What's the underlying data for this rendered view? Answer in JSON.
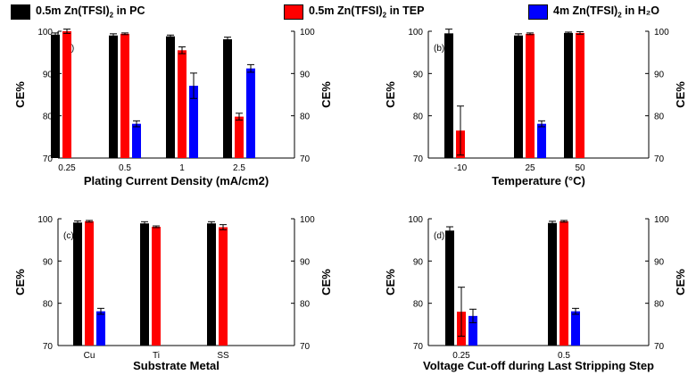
{
  "legend": [
    {
      "label_main": "0.5m Zn(TFSI)",
      "label_sub": "2",
      "label_tail": " in PC",
      "color": "#000000"
    },
    {
      "label_main": "0.5m Zn(TFSI)",
      "label_sub": "2",
      "label_tail": " in TEP",
      "color": "#ff0000"
    },
    {
      "label_main": "4m Zn(TFSI)",
      "label_sub": "2",
      "label_tail": " in H₂O",
      "color": "#0000ff"
    }
  ],
  "chart_data": [
    {
      "type": "bar",
      "panel_label": "(a)",
      "xlabel": "Plating Current Density (mA/cm2)",
      "ylabel": "CE%",
      "ylim": [
        70,
        100
      ],
      "yticks": [
        "70",
        "80",
        "90",
        "100"
      ],
      "categories": [
        "0.25",
        "0.5",
        "1",
        "2.5"
      ],
      "series": [
        {
          "name": "0.5m Zn(TFSI)2 in PC",
          "color": "#000000",
          "values": [
            99.2,
            99.0,
            98.8,
            98.1
          ],
          "errors": [
            0.4,
            0.4,
            0.3,
            0.5
          ]
        },
        {
          "name": "0.5m Zn(TFSI)2 in TEP",
          "color": "#ff0000",
          "values": [
            100.0,
            99.4,
            95.5,
            79.8
          ],
          "errors": [
            0.5,
            0.2,
            0.8,
            0.8
          ]
        },
        {
          "name": "4m Zn(TFSI)2 in H2O",
          "color": "#0000ff",
          "values": [
            null,
            78.1,
            87.1,
            91.2
          ],
          "errors": [
            null,
            0.7,
            3.0,
            0.9
          ]
        }
      ]
    },
    {
      "type": "bar",
      "panel_label": "(b)",
      "xlabel": "Temperature (°C)",
      "ylabel": "CE%",
      "ylim": [
        70,
        100
      ],
      "yticks": [
        "70",
        "80",
        "90",
        "100"
      ],
      "categories": [
        "-10",
        "25",
        "50"
      ],
      "series": [
        {
          "name": "0.5m Zn(TFSI)2 in PC",
          "color": "#000000",
          "values": [
            99.5,
            99.0,
            99.6
          ],
          "errors": [
            1.0,
            0.4,
            0.2
          ]
        },
        {
          "name": "0.5m Zn(TFSI)2 in TEP",
          "color": "#ff0000",
          "values": [
            76.5,
            99.4,
            99.6
          ],
          "errors": [
            5.8,
            0.2,
            0.3
          ]
        },
        {
          "name": "4m Zn(TFSI)2 in H2O",
          "color": "#0000ff",
          "values": [
            null,
            78.1,
            null
          ],
          "errors": [
            null,
            0.7,
            null
          ]
        }
      ]
    },
    {
      "type": "bar",
      "panel_label": "(c)",
      "xlabel": "Substrate Metal",
      "ylabel": "CE%",
      "ylim": [
        70,
        100
      ],
      "yticks": [
        "70",
        "80",
        "90",
        "100"
      ],
      "categories": [
        "Cu",
        "Ti",
        "SS"
      ],
      "series": [
        {
          "name": "0.5m Zn(TFSI)2 in PC",
          "color": "#000000",
          "values": [
            99.1,
            98.9,
            98.9
          ],
          "errors": [
            0.4,
            0.4,
            0.4
          ]
        },
        {
          "name": "0.5m Zn(TFSI)2 in TEP",
          "color": "#ff0000",
          "values": [
            99.4,
            98.1,
            98.0
          ],
          "errors": [
            0.2,
            0.2,
            0.6
          ]
        },
        {
          "name": "4m Zn(TFSI)2 in H2O",
          "color": "#0000ff",
          "values": [
            78.1,
            null,
            null
          ],
          "errors": [
            0.7,
            null,
            null
          ]
        }
      ]
    },
    {
      "type": "bar",
      "panel_label": "(d)",
      "xlabel": "Voltage Cut-off during Last Stripping Step",
      "ylabel": "CE%",
      "ylim": [
        70,
        100
      ],
      "yticks": [
        "70",
        "80",
        "90",
        "100"
      ],
      "categories": [
        "0.25",
        "0.5"
      ],
      "series": [
        {
          "name": "0.5m Zn(TFSI)2 in PC",
          "color": "#000000",
          "values": [
            97.2,
            99.0
          ],
          "errors": [
            0.9,
            0.4
          ]
        },
        {
          "name": "0.5m Zn(TFSI)2 in TEP",
          "color": "#ff0000",
          "values": [
            78.0,
            99.4
          ],
          "errors": [
            5.8,
            0.2
          ]
        },
        {
          "name": "4m Zn(TFSI)2 in H2O",
          "color": "#0000ff",
          "values": [
            77.0,
            78.1
          ],
          "errors": [
            1.6,
            0.7
          ]
        }
      ]
    }
  ]
}
